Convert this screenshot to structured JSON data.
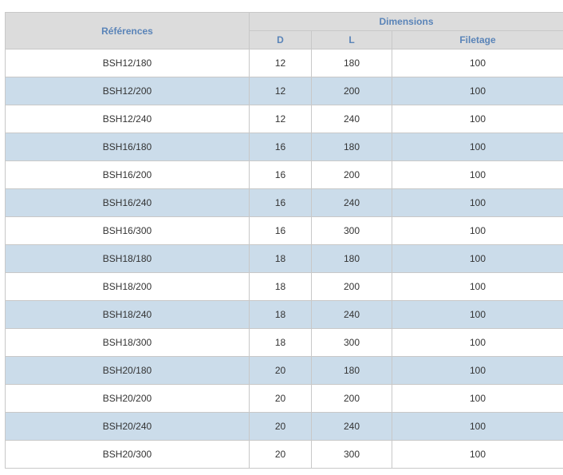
{
  "table": {
    "headers": {
      "references": "Références",
      "dimensions": "Dimensions",
      "d": "D",
      "l": "L",
      "filetage": "Filetage"
    },
    "rows": [
      {
        "ref": "BSH12/180",
        "d": "12",
        "l": "180",
        "filetage": "100"
      },
      {
        "ref": "BSH12/200",
        "d": "12",
        "l": "200",
        "filetage": "100"
      },
      {
        "ref": "BSH12/240",
        "d": "12",
        "l": "240",
        "filetage": "100"
      },
      {
        "ref": "BSH16/180",
        "d": "16",
        "l": "180",
        "filetage": "100"
      },
      {
        "ref": "BSH16/200",
        "d": "16",
        "l": "200",
        "filetage": "100"
      },
      {
        "ref": "BSH16/240",
        "d": "16",
        "l": "240",
        "filetage": "100"
      },
      {
        "ref": "BSH16/300",
        "d": "16",
        "l": "300",
        "filetage": "100"
      },
      {
        "ref": "BSH18/180",
        "d": "18",
        "l": "180",
        "filetage": "100"
      },
      {
        "ref": "BSH18/200",
        "d": "18",
        "l": "200",
        "filetage": "100"
      },
      {
        "ref": "BSH18/240",
        "d": "18",
        "l": "240",
        "filetage": "100"
      },
      {
        "ref": "BSH18/300",
        "d": "18",
        "l": "300",
        "filetage": "100"
      },
      {
        "ref": "BSH20/180",
        "d": "20",
        "l": "180",
        "filetage": "100"
      },
      {
        "ref": "BSH20/200",
        "d": "20",
        "l": "200",
        "filetage": "100"
      },
      {
        "ref": "BSH20/240",
        "d": "20",
        "l": "240",
        "filetage": "100"
      },
      {
        "ref": "BSH20/300",
        "d": "20",
        "l": "300",
        "filetage": "100"
      }
    ]
  },
  "colors": {
    "header_bg": "#dcdcdc",
    "header_text": "#5a84b8",
    "row_alt_bg": "#cbdcea",
    "border": "#c8c8c8"
  }
}
